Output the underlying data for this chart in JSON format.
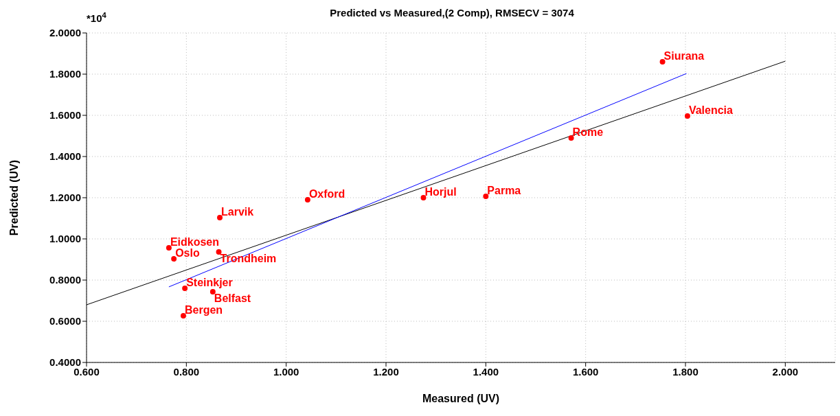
{
  "chart_data": {
    "type": "scatter",
    "title": "Predicted vs Measured,(2 Comp), RMSECV = 3074",
    "xlabel": "Measured (UV)",
    "ylabel": "Predicted (UV)",
    "x": [
      1.754,
      1.804,
      1.571,
      1.4,
      1.275,
      1.043,
      0.867,
      0.765,
      0.865,
      0.775,
      0.797,
      0.853,
      0.794
    ],
    "series": [
      {
        "color": "#ff0000",
        "marker": "circle",
        "values": [
          1.86,
          1.597,
          1.49,
          1.207,
          1.2,
          1.19,
          1.103,
          0.957,
          0.937,
          0.903,
          0.76,
          0.743,
          0.627
        ]
      },
      {
        "type": "line",
        "marker": "none",
        "color": "#000000",
        "x": [
          0.6,
          2.0
        ],
        "values": [
          0.68,
          1.863
        ]
      },
      {
        "type": "line",
        "marker": "none",
        "color": "#0000ff",
        "x": [
          0.765,
          1.802
        ],
        "values": [
          0.767,
          1.803
        ]
      }
    ],
    "annotations": [
      {
        "text": "Siurana",
        "x": 1.754,
        "y": 1.86
      },
      {
        "text": "Valencia",
        "x": 1.804,
        "y": 1.597
      },
      {
        "text": "Rome",
        "x": 1.571,
        "y": 1.49
      },
      {
        "text": "Parma",
        "x": 1.4,
        "y": 1.207
      },
      {
        "text": "Horjul",
        "x": 1.275,
        "y": 1.2
      },
      {
        "text": "Oxford",
        "x": 1.043,
        "y": 1.19
      },
      {
        "text": "Larvik",
        "x": 0.867,
        "y": 1.103
      },
      {
        "text": "Eidkosen",
        "x": 0.765,
        "y": 0.957
      },
      {
        "text": "Trondheim",
        "x": 0.865,
        "y": 0.937
      },
      {
        "text": "Oslo",
        "x": 0.775,
        "y": 0.903
      },
      {
        "text": "Steinkjer",
        "x": 0.797,
        "y": 0.76
      },
      {
        "text": "Belfast",
        "x": 0.853,
        "y": 0.743
      },
      {
        "text": "Bergen",
        "x": 0.794,
        "y": 0.627
      },
      "*10$^{4}$"
    ],
    "xlim": [
      0.6,
      2.1
    ],
    "xticks": [
      {
        "value": 0.6,
        "label": "0.600"
      },
      {
        "value": 0.8,
        "label": "0.800"
      },
      {
        "value": 1.0,
        "label": "1.000"
      },
      {
        "value": 1.2,
        "label": "1.200"
      },
      {
        "value": 1.4,
        "label": "1.400"
      },
      {
        "value": 1.6,
        "label": "1.600"
      },
      {
        "value": 1.8,
        "label": "1.800"
      },
      {
        "value": 2.0,
        "label": "2.000"
      }
    ],
    "ylim": [
      0.4,
      2.0
    ],
    "yticks": [
      {
        "value": 0.4,
        "label": "0.4000"
      },
      {
        "value": 0.6,
        "label": "0.6000"
      },
      {
        "value": 0.8,
        "label": "0.8000"
      },
      {
        "value": 1.0,
        "label": "1.0000"
      },
      {
        "value": 1.2,
        "label": "1.2000"
      },
      {
        "value": 1.4,
        "label": "1.4000"
      },
      {
        "value": 1.6,
        "label": "1.6000"
      },
      {
        "value": 1.8,
        "label": "1.8000"
      },
      {
        "value": 2.0,
        "label": "2.0000"
      }
    ],
    "grid": true,
    "legend": false,
    "line_style": "solid"
  }
}
